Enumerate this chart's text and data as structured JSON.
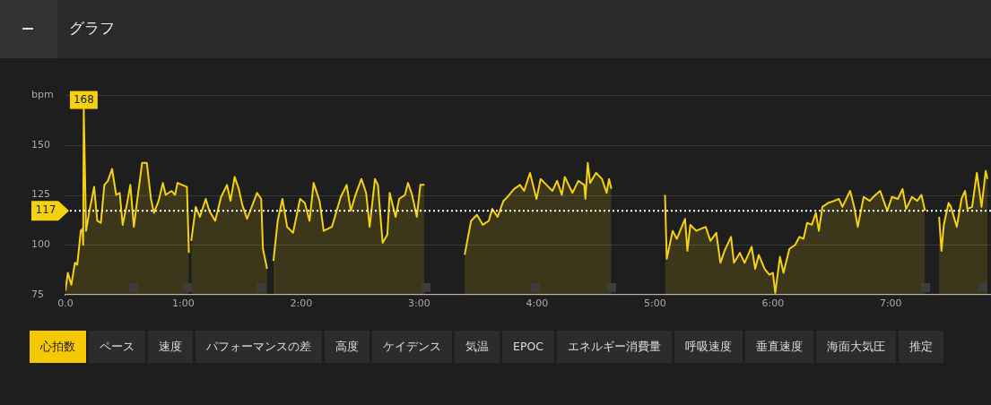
{
  "chart_data": {
    "type": "area",
    "title": "グラフ",
    "ylabel": "bpm",
    "x": [
      0,
      0.02,
      0.05,
      0.08,
      0.1,
      0.13,
      0.145,
      0.15,
      0.155,
      0.175,
      0.2,
      0.243,
      0.27,
      0.3,
      0.33,
      0.36,
      0.395,
      0.43,
      0.46,
      0.485,
      0.52,
      0.55,
      0.58,
      0.61,
      0.65,
      0.69,
      0.725,
      0.75,
      0.79,
      0.826,
      0.85,
      0.9,
      0.93,
      0.95,
      1.03,
      1.047,
      1.056,
      1.067,
      1.105,
      1.14,
      1.19,
      1.22,
      1.27,
      1.32,
      1.37,
      1.4,
      1.435,
      1.47,
      1.5,
      1.54,
      1.625,
      1.66,
      1.675,
      1.71,
      1.74,
      1.764,
      1.8,
      1.84,
      1.88,
      1.93,
      1.99,
      2.03,
      2.07,
      2.105,
      2.155,
      2.19,
      2.26,
      2.335,
      2.385,
      2.42,
      2.46,
      2.51,
      2.55,
      2.58,
      2.625,
      2.65,
      2.69,
      2.73,
      2.75,
      2.8,
      2.83,
      2.88,
      2.905,
      2.94,
      2.98,
      3.01,
      3.045,
      3.2,
      3.386,
      3.44,
      3.49,
      3.54,
      3.59,
      3.62,
      3.665,
      3.715,
      3.75,
      3.805,
      3.855,
      3.89,
      3.94,
      3.995,
      4.03,
      4.08,
      4.13,
      4.17,
      4.21,
      4.235,
      4.3,
      4.35,
      4.4,
      4.41,
      4.43,
      4.45,
      4.5,
      4.55,
      4.59,
      4.61,
      4.63,
      4.85,
      5.085,
      5.1,
      5.15,
      5.185,
      5.255,
      5.275,
      5.3,
      5.35,
      5.43,
      5.47,
      5.52,
      5.555,
      5.59,
      5.645,
      5.67,
      5.72,
      5.76,
      5.82,
      5.85,
      5.88,
      5.93,
      5.97,
      6.0,
      6.02,
      6.06,
      6.09,
      6.14,
      6.19,
      6.225,
      6.26,
      6.29,
      6.33,
      6.365,
      6.39,
      6.42,
      6.47,
      6.52,
      6.56,
      6.59,
      6.655,
      6.69,
      6.72,
      6.77,
      6.82,
      6.87,
      6.91,
      6.97,
      7.01,
      7.06,
      7.1,
      7.13,
      7.18,
      7.225,
      7.26,
      7.29,
      7.35,
      7.41,
      7.43,
      7.45,
      7.49,
      7.51,
      7.56,
      7.6,
      7.63,
      7.65,
      7.69,
      7.73,
      7.77,
      7.805,
      7.82
    ],
    "series": [
      {
        "color": "#f5d10f",
        "values": [
          77,
          86,
          80,
          91,
          90,
          107,
          108,
          100,
          168,
          107,
          116,
          129,
          112,
          111,
          130,
          132,
          138,
          125,
          126,
          110,
          120,
          130,
          109,
          123,
          141,
          141,
          123,
          116,
          122,
          131,
          125,
          127,
          125,
          131,
          129,
          96,
          null,
          102,
          119,
          114,
          123,
          117,
          112,
          124,
          130,
          122,
          134,
          128,
          120,
          113,
          126,
          123,
          98,
          88,
          null,
          92,
          112,
          123,
          109,
          106,
          123,
          121,
          112,
          131,
          122,
          107,
          109,
          124,
          130,
          117,
          125,
          133,
          126,
          109,
          133,
          130,
          101,
          105,
          126,
          114,
          123,
          125,
          131,
          125,
          114,
          130,
          130,
          null,
          95,
          112,
          115,
          110,
          112,
          118,
          114,
          122,
          124,
          128,
          130,
          127,
          136,
          123,
          133,
          130,
          127,
          132,
          125,
          134,
          126,
          132,
          130,
          123,
          141,
          131,
          136,
          133,
          126,
          133,
          128,
          null,
          125,
          93,
          107,
          103,
          113,
          97,
          110,
          107,
          109,
          102,
          106,
          91,
          97,
          104,
          91,
          96,
          91,
          99,
          88,
          95,
          88,
          85,
          86,
          76,
          94,
          86,
          98,
          100,
          104,
          103,
          111,
          110,
          116,
          107,
          119,
          121,
          122,
          123,
          119,
          127,
          119,
          109,
          124,
          122,
          125,
          127,
          117,
          124,
          123,
          128,
          118,
          124,
          122,
          125,
          117,
          null,
          114,
          97,
          110,
          121,
          119,
          109,
          123,
          127,
          118,
          119,
          136,
          119,
          137,
          133
        ]
      }
    ],
    "xlim": [
      0,
      7.85
    ],
    "xticks": [
      {
        "value": 0,
        "label": "0.0"
      },
      {
        "value": 1,
        "label": "1:00"
      },
      {
        "value": 2,
        "label": "2:00"
      },
      {
        "value": 3,
        "label": "3:00"
      },
      {
        "value": 4,
        "label": "4:00"
      },
      {
        "value": 5,
        "label": "5:00"
      },
      {
        "value": 6,
        "label": "6:00"
      },
      {
        "value": 7,
        "label": "7:00"
      }
    ],
    "ylim": [
      75,
      175
    ],
    "yticks": [
      75,
      100,
      125,
      150,
      {
        "value": 175,
        "label": null
      }
    ],
    "grid": "y",
    "marker": "none",
    "line_style": "solid",
    "ref_lines": [
      {
        "axis": "y",
        "value": 117,
        "label": "117",
        "color": "#ffffff",
        "line_style": "dotted"
      }
    ],
    "annotations": [
      {
        "text": "168",
        "x": 0.155,
        "y": 168
      },
      "心拍数",
      "ペース",
      "速度",
      "パフォーマンスの差",
      "高度",
      "ケイデンス",
      "気温",
      "EPOC",
      "エネルギー消費量",
      "呼吸速度",
      "垂直速度",
      "海面大気圧",
      "推定"
    ]
  }
}
